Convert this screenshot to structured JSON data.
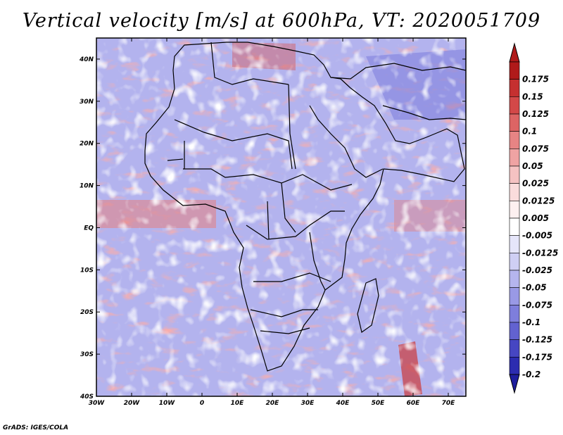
{
  "title": "Vertical velocity [m/s] at 600hPa, VT: 2020051709",
  "credit": "GrADS: IGES/COLA",
  "map": {
    "lon_range": [
      -30,
      75
    ],
    "lat_range": [
      -40,
      45
    ],
    "lon_ticks": [
      {
        "value": -30,
        "label": "30W"
      },
      {
        "value": -20,
        "label": "20W"
      },
      {
        "value": -10,
        "label": "10W"
      },
      {
        "value": 0,
        "label": "0"
      },
      {
        "value": 10,
        "label": "10E"
      },
      {
        "value": 20,
        "label": "20E"
      },
      {
        "value": 30,
        "label": "30E"
      },
      {
        "value": 40,
        "label": "40E"
      },
      {
        "value": 50,
        "label": "50E"
      },
      {
        "value": 60,
        "label": "60E"
      },
      {
        "value": 70,
        "label": "70E"
      }
    ],
    "lat_ticks": [
      {
        "value": 40,
        "label": "40N"
      },
      {
        "value": 30,
        "label": "30N"
      },
      {
        "value": 20,
        "label": "20N"
      },
      {
        "value": 10,
        "label": "10N"
      },
      {
        "value": 0,
        "label": "EQ"
      },
      {
        "value": -10,
        "label": "10S"
      },
      {
        "value": -20,
        "label": "20S"
      },
      {
        "value": -30,
        "label": "30S"
      },
      {
        "value": -40,
        "label": "40S"
      }
    ]
  },
  "colorbar": {
    "levels": [
      {
        "label": "0.175",
        "color": "#b01a1a"
      },
      {
        "label": "0.15",
        "color": "#c53030"
      },
      {
        "label": "0.125",
        "color": "#d34848"
      },
      {
        "label": "0.1",
        "color": "#dd6464"
      },
      {
        "label": "0.075",
        "color": "#e78484"
      },
      {
        "label": "0.05",
        "color": "#efa3a3"
      },
      {
        "label": "0.025",
        "color": "#f5c2c2"
      },
      {
        "label": "0.0125",
        "color": "#fadcdc"
      },
      {
        "label": "0.005",
        "color": "#fdf0f0"
      },
      {
        "label": "-0.005",
        "color": "#ffffff"
      },
      {
        "label": "-0.0125",
        "color": "#e6e6fa"
      },
      {
        "label": "-0.025",
        "color": "#cfcff4"
      },
      {
        "label": "-0.05",
        "color": "#b5b5ee"
      },
      {
        "label": "-0.075",
        "color": "#9999e6"
      },
      {
        "label": "-0.1",
        "color": "#7e7edc"
      },
      {
        "label": "-0.125",
        "color": "#6262d0"
      },
      {
        "label": "-0.175",
        "color": "#4646c2"
      },
      {
        "label": "-0.2",
        "color": "#2c2cb0"
      }
    ],
    "top_color": "#b01a1a",
    "bottom_color": "#1e1e9e"
  }
}
